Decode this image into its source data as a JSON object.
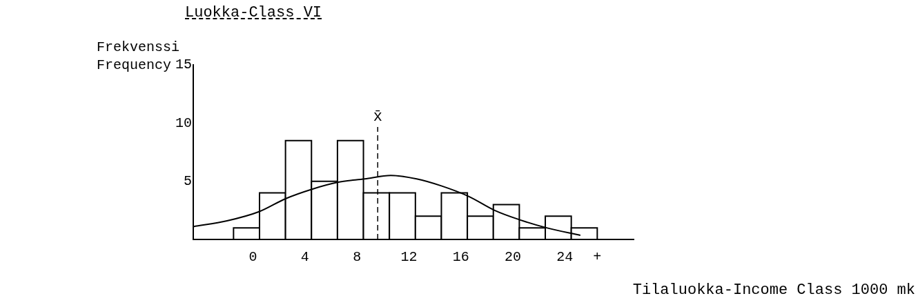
{
  "chart_data": {
    "type": "histogram",
    "title": "Luokka-Class VI",
    "ylabel": "Frekvenssi\nFrequency",
    "xlabel": "Tilaluokka-Income Class 1000 mk",
    "bins": [
      -1.5,
      0.5,
      2.5,
      4.5,
      6.5,
      8.5,
      10.5,
      12.5,
      14.5,
      16.5,
      18.5,
      20.5,
      22.5,
      24.5,
      26.5
    ],
    "values": [
      1,
      4,
      8.5,
      5,
      8.5,
      4,
      4,
      2,
      4,
      2,
      3,
      1,
      2,
      1
    ],
    "color": "#000000",
    "series": [
      {
        "type": "line",
        "color": "#000000",
        "x": [
          -4.6,
          -2,
          0.5,
          2.5,
          4.5,
          6.5,
          8.6,
          10.6,
          12.6,
          14.5,
          16.6,
          18.6,
          20.5,
          22.6,
          25.2
        ],
        "values": [
          1.1,
          1.6,
          2.4,
          3.5,
          4.3,
          4.9,
          5.2,
          5.5,
          5.2,
          4.6,
          3.7,
          2.5,
          1.7,
          1.0,
          0.35
        ]
      }
    ],
    "xlim": [
      -4.6,
      29.3
    ],
    "xticks": [
      0,
      4,
      8,
      12,
      16,
      20,
      24,
      {
        "value": 26.5,
        "label": "+"
      }
    ],
    "ylim": [
      0,
      15
    ],
    "yticks": [
      5,
      10,
      15
    ],
    "ref_lines": [
      {
        "axis": "x",
        "value": 9.6,
        "label": "x̄",
        "line_style": "dashed"
      }
    ],
    "grid": false,
    "legend": false
  }
}
